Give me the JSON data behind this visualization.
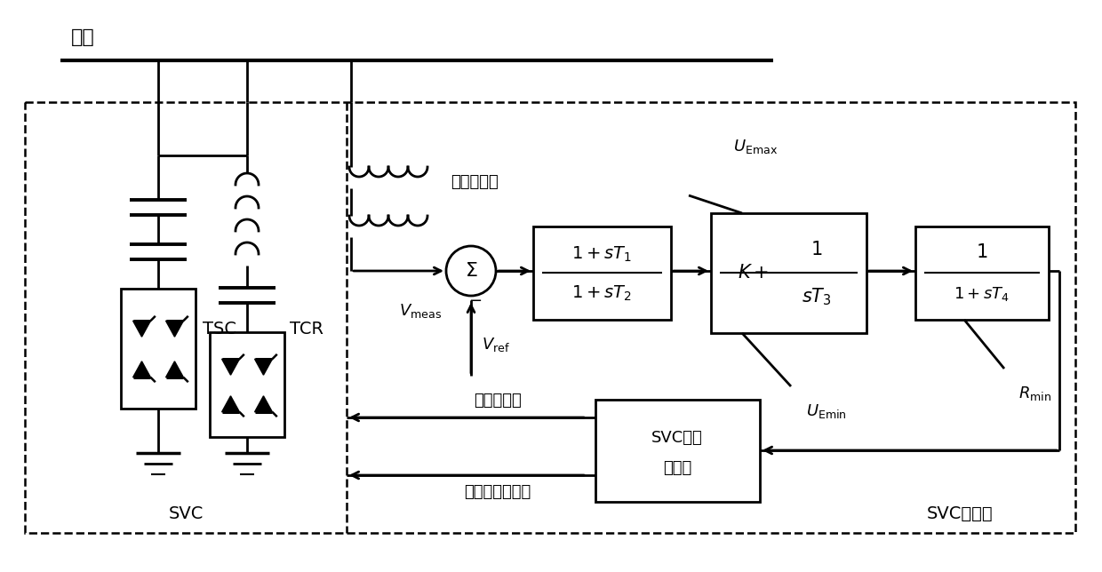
{
  "bg_color": "#ffffff",
  "lc": "#000000",
  "fig_width": 12.4,
  "fig_height": 6.44,
  "label_bus": "母线",
  "label_vt": "电压互感器",
  "label_TSC": "TSC",
  "label_TCR": "TCR",
  "label_SVC": "SVC",
  "label_SVC_ctrl": "SVC控制器",
  "label_SVC_sig1": "SVC信号",
  "label_SVC_sig2": "发生器",
  "label_trigger": "触发角信号",
  "label_cap_sig": "电容器组数信号",
  "label_V_meas": "$V_{\\mathrm{meas}}$",
  "label_V_ref": "$V_{\\mathrm{ref}}$",
  "label_U_Emax": "$U_{\\mathrm{Emax}}$",
  "label_U_Emin": "$U_{\\mathrm{Emin}}$",
  "label_R_min": "$R_{\\mathrm{min}}$"
}
